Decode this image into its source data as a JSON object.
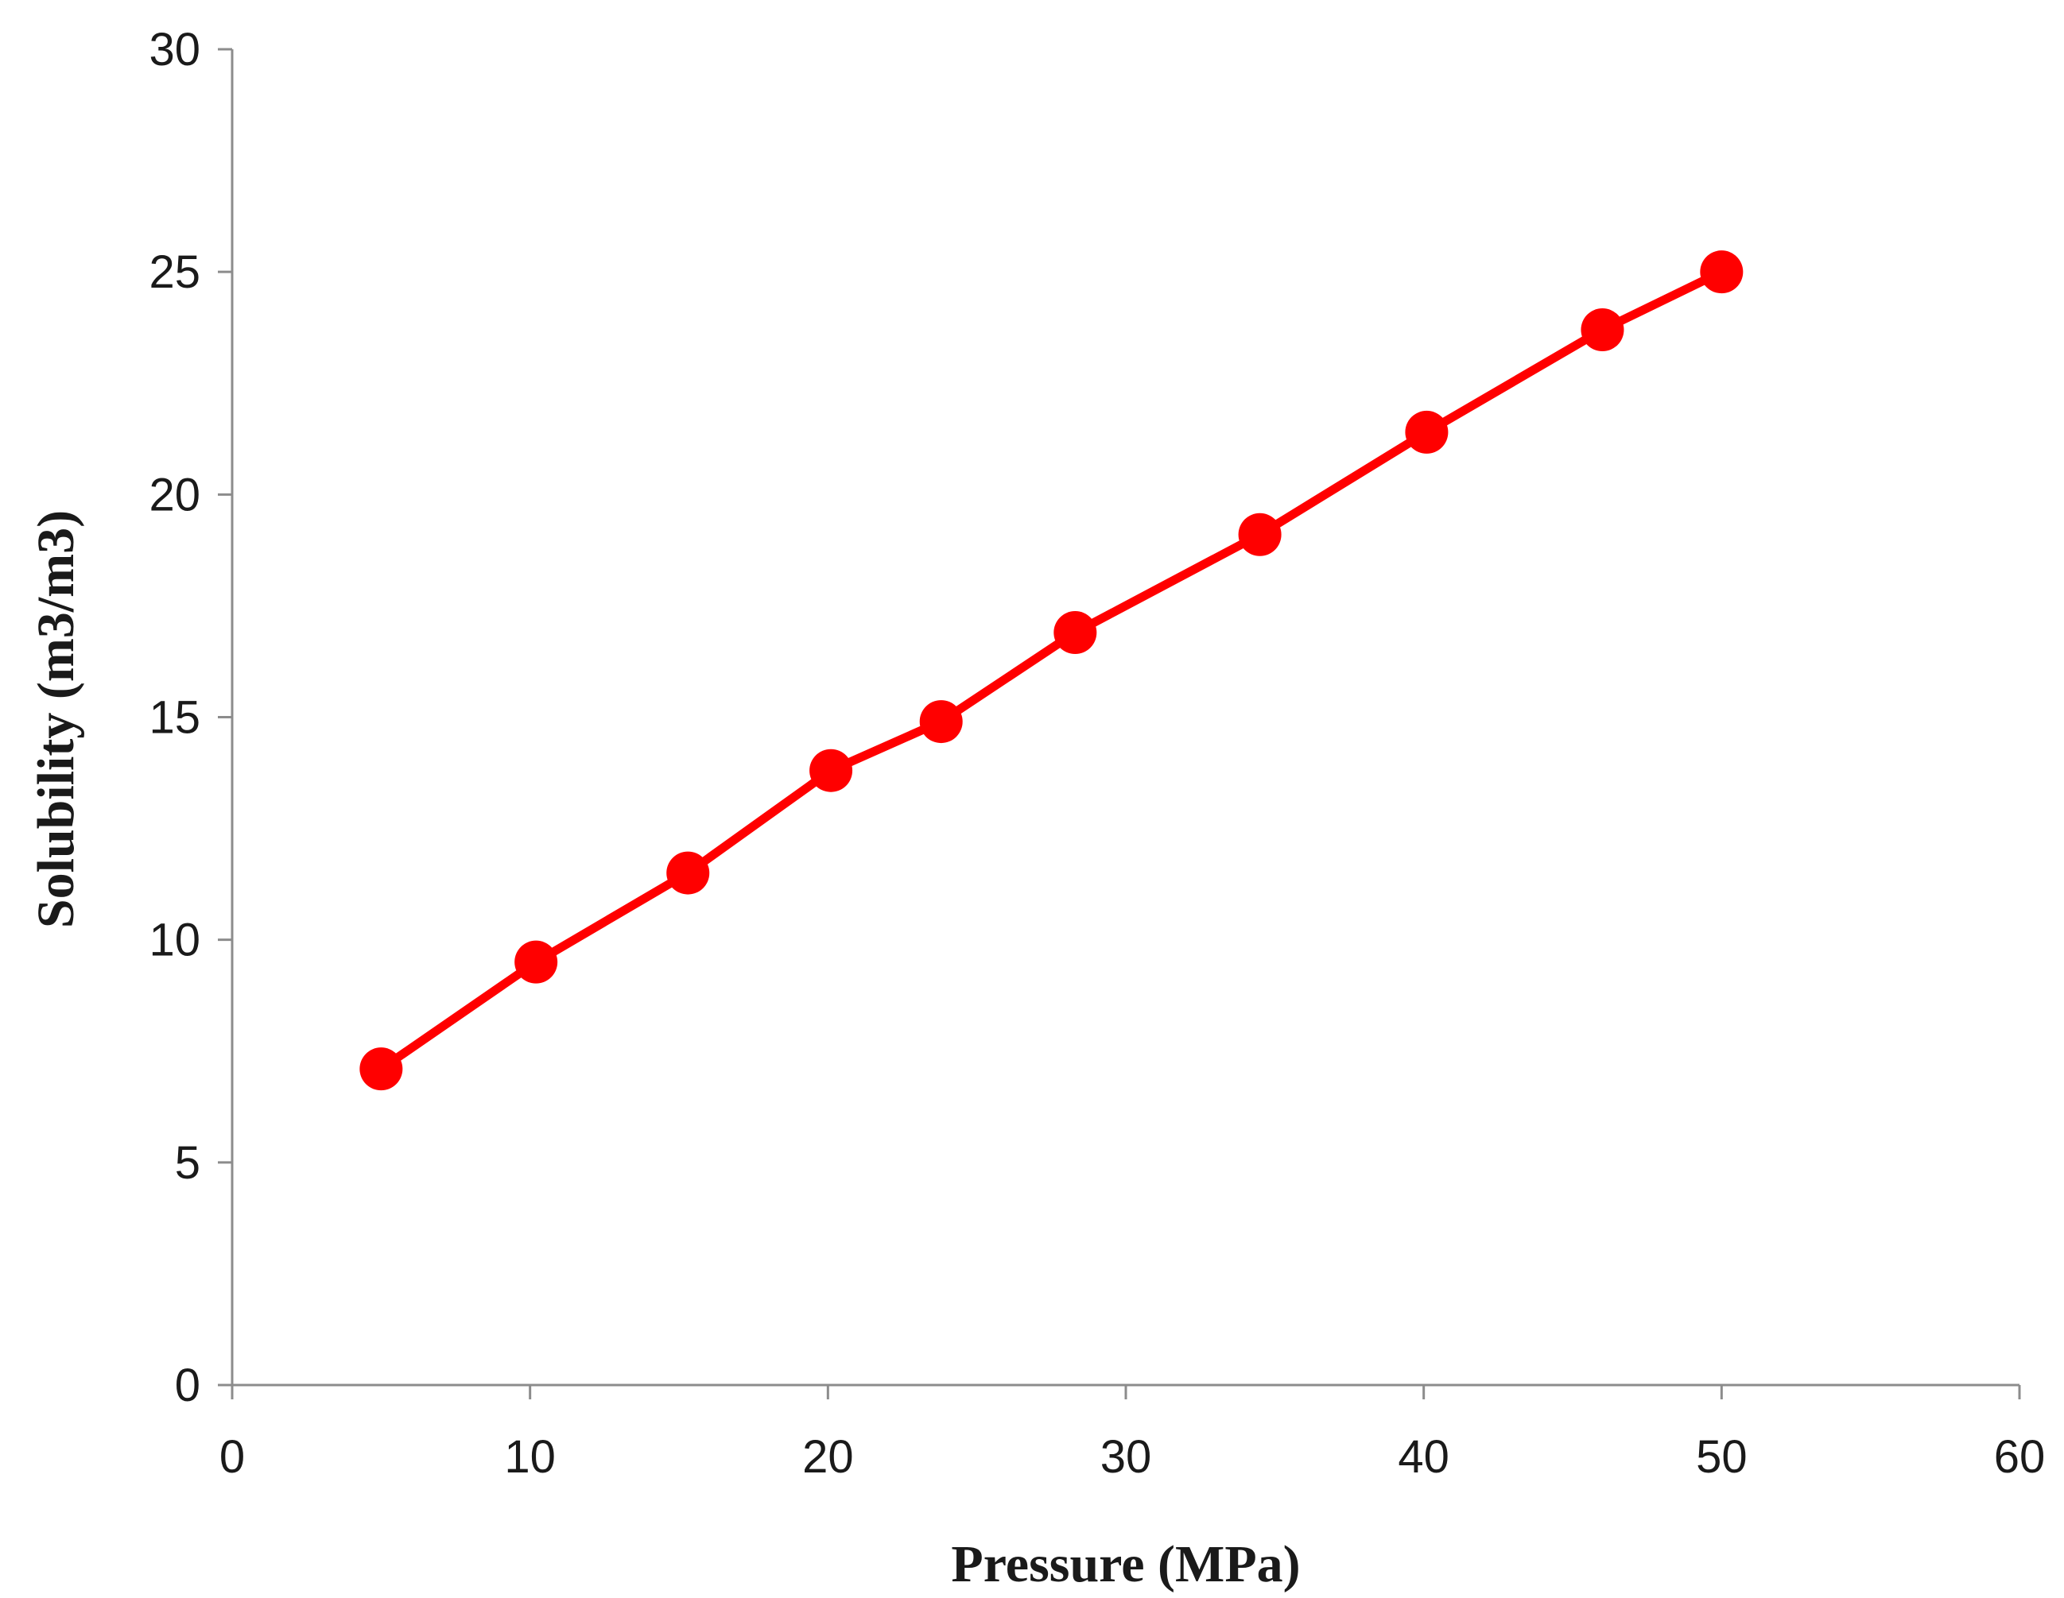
{
  "chart_data": {
    "type": "line",
    "title": "",
    "xlabel": "Pressure (MPa)",
    "ylabel": "Solubility (m3/m3)",
    "xlim": [
      0,
      60
    ],
    "ylim": [
      0,
      30
    ],
    "x_ticks": [
      "0",
      "10",
      "20",
      "30",
      "40",
      "50",
      "60"
    ],
    "y_ticks": [
      "0",
      "5",
      "10",
      "15",
      "20",
      "25",
      "30"
    ],
    "grid": false,
    "legend": "none",
    "series": [
      {
        "color": "#ff0000",
        "marker": "circle",
        "x": [
          5.0,
          10.2,
          15.3,
          20.1,
          23.8,
          28.3,
          34.5,
          40.1,
          46.0,
          50.0
        ],
        "y": [
          7.1,
          9.5,
          11.5,
          13.8,
          14.9,
          16.9,
          19.1,
          21.4,
          23.7,
          25.0
        ]
      }
    ]
  }
}
